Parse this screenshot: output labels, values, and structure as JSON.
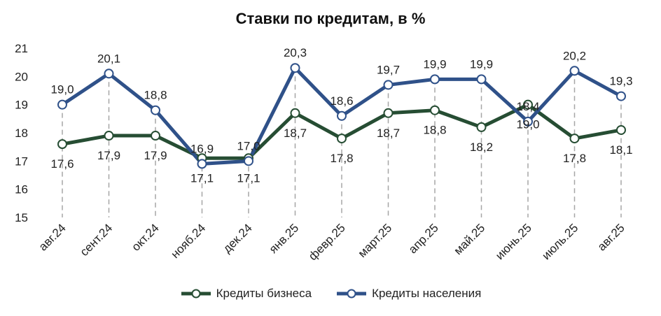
{
  "chart_data": {
    "type": "line",
    "title": "Ставки по кредитам, в %",
    "categories": [
      "авг.24",
      "сент.24",
      "окт.24",
      "нояб.24",
      "дек.24",
      "янв.25",
      "февр.25",
      "март.25",
      "апр.25",
      "май.25",
      "июнь.25",
      "июль.25",
      "авг.25"
    ],
    "ylim": [
      15,
      21
    ],
    "yticks": [
      "15",
      "16",
      "17",
      "18",
      "19",
      "20",
      "21"
    ],
    "grid": "vertical dashed drop lines",
    "legend_position": "bottom",
    "series": [
      {
        "name": "Кредиты бизнеса",
        "color": "#264d33",
        "values": [
          17.6,
          17.9,
          17.9,
          17.1,
          17.1,
          18.7,
          17.8,
          18.7,
          18.8,
          18.2,
          19.0,
          17.8,
          18.1
        ],
        "labels": [
          "17,6",
          "17,9",
          "17,9",
          "17,1",
          "17,1",
          "18,7",
          "17,8",
          "18,7",
          "18,8",
          "18,2",
          "19,0",
          "17,8",
          "18,1"
        ]
      },
      {
        "name": "Кредиты населения",
        "color": "#2f5189",
        "values": [
          19.0,
          20.1,
          18.8,
          16.9,
          17.0,
          20.3,
          18.6,
          19.7,
          19.9,
          19.9,
          18.4,
          20.2,
          19.3
        ],
        "labels": [
          "19,0",
          "20,1",
          "18,8",
          "16,9",
          "17,0",
          "20,3",
          "18,6",
          "19,7",
          "19,9",
          "19,9",
          "18,4",
          "20,2",
          "19,3"
        ]
      }
    ]
  }
}
